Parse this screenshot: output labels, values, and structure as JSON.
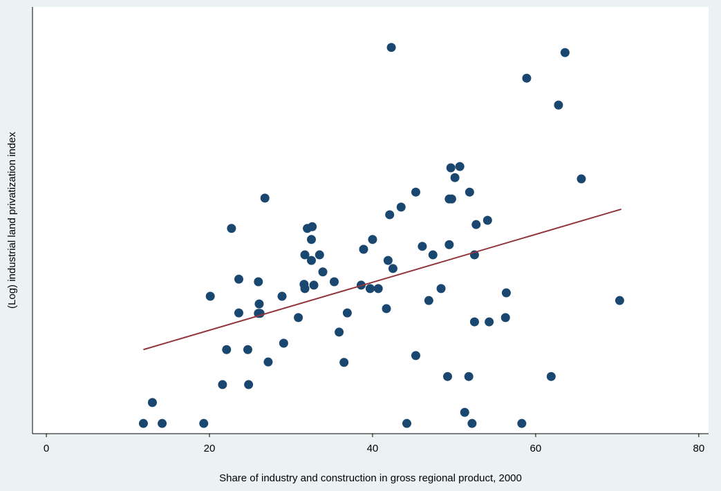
{
  "chart_data": {
    "type": "scatter",
    "x_label": "Share of industry and construction in gross regional product, 2000",
    "y_label": "(Log) industrial land privatization index",
    "color": "#1a476f",
    "x": [
      11.9,
      13.0,
      14.2,
      19.3,
      20.1,
      21.6,
      22.1,
      22.7,
      23.6,
      23.6,
      24.7,
      24.8,
      26.0,
      26.1,
      26.0,
      26.2,
      26.8,
      27.2,
      28.9,
      29.1,
      30.9,
      31.7,
      31.6,
      31.7,
      32.0,
      32.6,
      32.5,
      32.5,
      32.8,
      33.5,
      33.9,
      35.3,
      35.9,
      36.5,
      36.9,
      38.6,
      38.9,
      39.7,
      40.0,
      40.7,
      41.7,
      41.9,
      42.1,
      42.3,
      42.5,
      43.5,
      44.2,
      45.3,
      45.3,
      46.1,
      46.9,
      47.4,
      48.4,
      49.2,
      49.4,
      49.4,
      49.7,
      49.6,
      50.1,
      50.7,
      51.3,
      51.8,
      51.9,
      52.2,
      52.5,
      52.5,
      52.7,
      54.1,
      54.3,
      56.3,
      56.4,
      58.3,
      58.9,
      61.9,
      62.8,
      63.6,
      65.6,
      70.3
    ],
    "values": [
      2.4,
      7.3,
      2.4,
      2.4,
      32.2,
      11.5,
      19.7,
      48.1,
      36.2,
      28.3,
      19.7,
      11.5,
      35.6,
      30.4,
      28.2,
      28.2,
      55.2,
      16.8,
      32.2,
      21.2,
      27.2,
      41.9,
      35.0,
      34.0,
      48.1,
      48.5,
      45.5,
      40.6,
      34.8,
      41.9,
      37.9,
      35.6,
      23.8,
      16.7,
      28.3,
      34.8,
      43.2,
      34.0,
      45.5,
      34.0,
      29.3,
      40.6,
      51.3,
      90.5,
      38.7,
      53.1,
      2.4,
      56.6,
      18.3,
      43.9,
      31.2,
      41.9,
      34.0,
      13.4,
      44.3,
      55.0,
      55.0,
      62.3,
      60.0,
      62.6,
      5.0,
      13.4,
      56.6,
      2.4,
      41.9,
      26.2,
      49.0,
      50.0,
      26.2,
      27.2,
      33.0,
      2.4,
      83.3,
      13.4,
      77.0,
      89.3,
      59.7,
      31.2
    ],
    "fit": {
      "x": [
        11.9,
        70.5
      ],
      "values": [
        19.7,
        52.6
      ],
      "color": "#90353b"
    },
    "xlim": [
      -1.7,
      81.2
    ],
    "ylim": [
      0,
      100
    ],
    "xticks": [
      0,
      20,
      40,
      60,
      80
    ]
  }
}
